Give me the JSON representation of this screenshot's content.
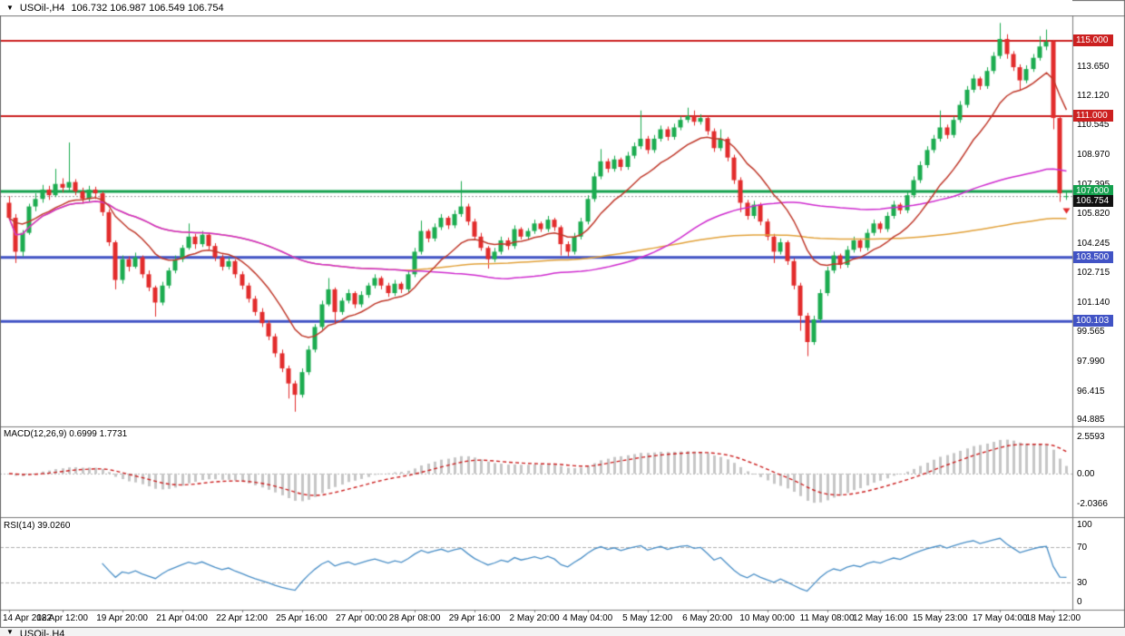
{
  "window": {
    "title_symbol": "USOil-,H4",
    "title_ohlc": "106.732 106.987 106.549 106.754"
  },
  "price_panel": {
    "axis_labels": [
      "113.650",
      "112.120",
      "110.545",
      "108.970",
      "107.395",
      "105.820",
      "104.245",
      "102.715",
      "101.140",
      "99.565",
      "97.990",
      "96.415",
      "94.885"
    ],
    "levels": [
      {
        "price": 115.0,
        "label": "115.000",
        "color": "#cc2020",
        "width": 2
      },
      {
        "price": 111.0,
        "label": "111.000",
        "color": "#cc2020",
        "width": 2
      },
      {
        "price": 107.0,
        "label": "107.000",
        "color": "#13a04d",
        "width": 3
      },
      {
        "price": 103.5,
        "label": "103.500",
        "color": "#4153c5",
        "width": 3
      },
      {
        "price": 100.103,
        "label": "100.103",
        "color": "#4153c5",
        "width": 3
      }
    ],
    "current_price": {
      "value": 106.754,
      "label": "106.754",
      "bg": "#111111"
    },
    "marker": {
      "shape": "down-arrow",
      "index": 159,
      "price": 106.35,
      "color": "#e22c2c"
    }
  },
  "macd_panel": {
    "label": "MACD(12,26,9) 0.6999 1.7731",
    "axis": [
      {
        "value": 2.5593,
        "text": "2.5593"
      },
      {
        "value": 0,
        "text": "0.00"
      },
      {
        "value": -2.0366,
        "text": "-2.0366"
      }
    ]
  },
  "rsi_panel": {
    "label": "RSI(14) 39.0260",
    "axis": [
      {
        "value": 100,
        "text": "100"
      },
      {
        "value": 70,
        "text": "70"
      },
      {
        "value": 30,
        "text": "30"
      },
      {
        "value": 0,
        "text": "0"
      }
    ],
    "levels": [
      70,
      30
    ]
  },
  "bottom_strip": {
    "partial_title": "USOil-,H4"
  },
  "colors": {
    "up_candle": "#1cac50",
    "down_candle": "#e22c2c",
    "ma_fast": "#c0392b",
    "ma_mid": "#cf2bcf",
    "ma_slow": "#e2a23b",
    "macd_histogram": "#c6c6c6",
    "macd_signal": "#cc2020",
    "rsi_line": "#4a8fc7",
    "divider": "#7a7a7a"
  },
  "chart_data": {
    "type": "candlestick",
    "title": "USOil-,H4",
    "last_ohlc": {
      "open": 106.732,
      "high": 106.987,
      "low": 106.549,
      "close": 106.754
    },
    "y_range_visible": [
      94.6,
      116.35
    ],
    "ohlc": [
      [
        106.4,
        106.75,
        105.45,
        105.6
      ],
      [
        105.6,
        105.8,
        103.2,
        103.8
      ],
      [
        103.8,
        104.95,
        103.55,
        104.8
      ],
      [
        104.8,
        106.35,
        104.7,
        106.2
      ],
      [
        106.2,
        106.9,
        105.95,
        106.6
      ],
      [
        106.6,
        107.35,
        106.4,
        107.1
      ],
      [
        107.1,
        107.3,
        106.55,
        106.8
      ],
      [
        106.8,
        108.2,
        106.7,
        107.4
      ],
      [
        107.4,
        107.7,
        106.95,
        107.2
      ],
      [
        107.2,
        109.6,
        107.05,
        107.5
      ],
      [
        107.5,
        107.65,
        106.8,
        107.0
      ],
      [
        107.0,
        107.2,
        106.35,
        106.6
      ],
      [
        106.6,
        107.3,
        106.45,
        107.1
      ],
      [
        107.1,
        107.25,
        106.6,
        106.9
      ],
      [
        106.9,
        107.0,
        105.7,
        105.9
      ],
      [
        105.9,
        106.05,
        104.1,
        104.3
      ],
      [
        104.3,
        104.4,
        101.8,
        102.3
      ],
      [
        102.3,
        103.6,
        102.1,
        103.4
      ],
      [
        103.4,
        103.55,
        102.75,
        103.0
      ],
      [
        103.0,
        103.75,
        102.9,
        103.5
      ],
      [
        103.5,
        103.6,
        102.4,
        102.6
      ],
      [
        102.6,
        102.8,
        101.7,
        101.9
      ],
      [
        101.9,
        102.0,
        100.35,
        101.1
      ],
      [
        101.1,
        102.2,
        100.95,
        102.0
      ],
      [
        102.0,
        102.95,
        101.85,
        102.8
      ],
      [
        102.8,
        103.6,
        102.65,
        103.4
      ],
      [
        103.4,
        104.15,
        103.25,
        104.0
      ],
      [
        104.0,
        105.3,
        103.9,
        104.6
      ],
      [
        104.6,
        104.75,
        103.95,
        104.2
      ],
      [
        104.2,
        104.9,
        104.05,
        104.7
      ],
      [
        104.7,
        104.8,
        103.9,
        104.1
      ],
      [
        104.1,
        104.25,
        103.3,
        103.5
      ],
      [
        103.5,
        103.65,
        102.8,
        103.0
      ],
      [
        103.0,
        103.5,
        102.85,
        103.3
      ],
      [
        103.3,
        103.4,
        102.4,
        102.6
      ],
      [
        102.6,
        102.75,
        101.8,
        102.0
      ],
      [
        102.0,
        102.15,
        101.1,
        101.3
      ],
      [
        101.3,
        101.45,
        100.4,
        100.6
      ],
      [
        100.6,
        100.8,
        99.8,
        100.0
      ],
      [
        100.0,
        100.15,
        99.1,
        99.3
      ],
      [
        99.3,
        99.45,
        98.2,
        98.4
      ],
      [
        98.4,
        98.6,
        97.4,
        97.6
      ],
      [
        97.6,
        97.75,
        96.0,
        96.8
      ],
      [
        96.8,
        96.95,
        95.3,
        96.2
      ],
      [
        96.2,
        97.6,
        96.05,
        97.4
      ],
      [
        97.4,
        98.8,
        97.25,
        98.6
      ],
      [
        98.6,
        99.95,
        98.45,
        99.8
      ],
      [
        99.8,
        101.2,
        99.65,
        101.0
      ],
      [
        101.0,
        102.4,
        100.9,
        101.8
      ],
      [
        101.8,
        101.9,
        99.95,
        100.6
      ],
      [
        100.6,
        101.35,
        100.45,
        101.2
      ],
      [
        101.2,
        101.8,
        101.05,
        101.6
      ],
      [
        101.6,
        101.7,
        100.8,
        101.0
      ],
      [
        101.0,
        101.7,
        100.85,
        101.5
      ],
      [
        101.5,
        102.15,
        101.35,
        102.0
      ],
      [
        102.0,
        102.6,
        101.85,
        102.4
      ],
      [
        102.4,
        102.5,
        101.8,
        102.0
      ],
      [
        102.0,
        102.15,
        101.4,
        101.6
      ],
      [
        101.6,
        102.3,
        101.45,
        102.1
      ],
      [
        102.1,
        102.2,
        101.6,
        101.8
      ],
      [
        101.8,
        102.8,
        101.65,
        102.6
      ],
      [
        102.6,
        104.0,
        102.45,
        103.8
      ],
      [
        103.8,
        105.45,
        103.65,
        104.9
      ],
      [
        104.9,
        105.0,
        104.3,
        104.5
      ],
      [
        104.5,
        105.3,
        104.35,
        105.1
      ],
      [
        105.1,
        105.8,
        104.95,
        105.6
      ],
      [
        105.6,
        105.7,
        105.0,
        105.2
      ],
      [
        105.2,
        106.0,
        105.05,
        105.8
      ],
      [
        105.8,
        107.55,
        105.65,
        106.2
      ],
      [
        106.2,
        106.35,
        105.2,
        105.4
      ],
      [
        105.4,
        105.55,
        104.4,
        104.6
      ],
      [
        104.6,
        104.8,
        103.85,
        104.0
      ],
      [
        104.0,
        104.1,
        102.9,
        103.4
      ],
      [
        103.4,
        104.0,
        103.25,
        103.8
      ],
      [
        103.8,
        104.6,
        103.65,
        104.4
      ],
      [
        104.4,
        104.55,
        103.9,
        104.1
      ],
      [
        104.1,
        105.2,
        103.95,
        105.0
      ],
      [
        105.0,
        105.1,
        104.45,
        104.6
      ],
      [
        104.6,
        105.05,
        104.45,
        104.9
      ],
      [
        104.9,
        105.5,
        104.75,
        105.3
      ],
      [
        105.3,
        105.4,
        104.85,
        105.0
      ],
      [
        105.0,
        105.7,
        104.85,
        105.5
      ],
      [
        105.5,
        105.6,
        104.9,
        105.1
      ],
      [
        105.1,
        105.2,
        103.6,
        104.2
      ],
      [
        104.2,
        104.35,
        103.55,
        103.8
      ],
      [
        103.8,
        104.8,
        103.65,
        104.6
      ],
      [
        104.6,
        105.6,
        104.45,
        105.4
      ],
      [
        105.4,
        106.8,
        105.25,
        106.6
      ],
      [
        106.6,
        108.0,
        106.45,
        107.8
      ],
      [
        107.8,
        109.25,
        107.65,
        108.6
      ],
      [
        108.6,
        108.75,
        108.0,
        108.2
      ],
      [
        108.2,
        108.9,
        108.05,
        108.7
      ],
      [
        108.7,
        108.8,
        108.1,
        108.3
      ],
      [
        108.3,
        109.1,
        108.15,
        108.9
      ],
      [
        108.9,
        109.6,
        108.75,
        109.4
      ],
      [
        109.4,
        111.3,
        109.25,
        109.8
      ],
      [
        109.8,
        109.95,
        109.0,
        109.2
      ],
      [
        109.2,
        110.0,
        109.05,
        109.8
      ],
      [
        109.8,
        110.5,
        109.65,
        110.3
      ],
      [
        110.3,
        110.45,
        109.7,
        109.9
      ],
      [
        109.9,
        110.6,
        109.75,
        110.4
      ],
      [
        110.4,
        111.0,
        110.25,
        110.8
      ],
      [
        110.8,
        111.45,
        110.65,
        111.0
      ],
      [
        111.0,
        111.3,
        110.5,
        110.7
      ],
      [
        110.7,
        111.1,
        110.55,
        110.9
      ],
      [
        110.9,
        111.0,
        110.0,
        110.2
      ],
      [
        110.2,
        110.35,
        109.1,
        109.3
      ],
      [
        109.3,
        110.3,
        109.15,
        109.8
      ],
      [
        109.8,
        109.9,
        108.6,
        108.8
      ],
      [
        108.8,
        108.95,
        107.4,
        107.6
      ],
      [
        107.6,
        107.75,
        105.9,
        106.4
      ],
      [
        106.4,
        106.55,
        105.5,
        105.7
      ],
      [
        105.7,
        106.5,
        105.55,
        106.3
      ],
      [
        106.3,
        106.4,
        105.2,
        105.4
      ],
      [
        105.4,
        105.55,
        104.4,
        104.6
      ],
      [
        104.6,
        104.75,
        103.2,
        103.8
      ],
      [
        103.8,
        104.5,
        103.65,
        104.3
      ],
      [
        104.3,
        104.4,
        103.1,
        103.3
      ],
      [
        103.3,
        103.45,
        101.8,
        102.0
      ],
      [
        102.0,
        102.15,
        99.6,
        100.4
      ],
      [
        100.4,
        100.55,
        98.25,
        99.0
      ],
      [
        99.0,
        100.4,
        98.85,
        100.2
      ],
      [
        100.2,
        101.8,
        100.05,
        101.6
      ],
      [
        101.6,
        103.0,
        101.45,
        102.8
      ],
      [
        102.8,
        103.8,
        102.65,
        103.6
      ],
      [
        103.6,
        103.7,
        102.9,
        103.1
      ],
      [
        103.1,
        104.1,
        102.95,
        103.9
      ],
      [
        103.9,
        104.6,
        103.75,
        104.4
      ],
      [
        104.4,
        104.5,
        103.8,
        104.0
      ],
      [
        104.0,
        105.0,
        103.85,
        104.8
      ],
      [
        104.8,
        105.5,
        104.65,
        105.3
      ],
      [
        105.3,
        105.4,
        104.8,
        105.0
      ],
      [
        105.0,
        105.9,
        104.85,
        105.7
      ],
      [
        105.7,
        106.5,
        105.55,
        106.3
      ],
      [
        106.3,
        106.4,
        105.8,
        106.0
      ],
      [
        106.0,
        107.0,
        105.85,
        106.8
      ],
      [
        106.8,
        107.8,
        106.65,
        107.6
      ],
      [
        107.6,
        108.6,
        107.45,
        108.4
      ],
      [
        108.4,
        109.4,
        108.25,
        109.2
      ],
      [
        109.2,
        110.0,
        109.05,
        109.8
      ],
      [
        109.8,
        111.3,
        109.65,
        110.4
      ],
      [
        110.4,
        110.55,
        109.8,
        110.0
      ],
      [
        110.0,
        111.0,
        109.85,
        110.8
      ],
      [
        110.8,
        111.8,
        110.65,
        111.6
      ],
      [
        111.6,
        112.6,
        111.45,
        112.4
      ],
      [
        112.4,
        113.2,
        112.25,
        113.0
      ],
      [
        113.0,
        113.1,
        112.4,
        112.6
      ],
      [
        112.6,
        113.6,
        112.45,
        113.4
      ],
      [
        113.4,
        114.4,
        113.25,
        114.2
      ],
      [
        114.2,
        115.95,
        114.05,
        115.1
      ],
      [
        115.1,
        115.35,
        114.05,
        114.3
      ],
      [
        114.3,
        114.45,
        113.4,
        113.6
      ],
      [
        113.6,
        113.75,
        112.35,
        112.9
      ],
      [
        112.9,
        113.7,
        112.75,
        113.5
      ],
      [
        113.5,
        114.3,
        113.35,
        114.1
      ],
      [
        114.1,
        115.25,
        113.95,
        114.7
      ],
      [
        114.7,
        115.6,
        114.5,
        114.95
      ],
      [
        114.95,
        115.05,
        110.3,
        110.9
      ],
      [
        110.9,
        111.05,
        106.45,
        106.9
      ],
      [
        106.73,
        106.99,
        106.55,
        106.75
      ]
    ],
    "time_labels": [
      {
        "text": "14 Apr 2022",
        "index": 0
      },
      {
        "text": "18 Apr 12:00",
        "index": 8
      },
      {
        "text": "19 Apr 20:00",
        "index": 17
      },
      {
        "text": "21 Apr 04:00",
        "index": 26
      },
      {
        "text": "22 Apr 12:00",
        "index": 35
      },
      {
        "text": "25 Apr 16:00",
        "index": 44
      },
      {
        "text": "27 Apr 00:00",
        "index": 53
      },
      {
        "text": "28 Apr 08:00",
        "index": 61
      },
      {
        "text": "29 Apr 16:00",
        "index": 70
      },
      {
        "text": "2 May 20:00",
        "index": 79
      },
      {
        "text": "4 May 04:00",
        "index": 87
      },
      {
        "text": "5 May 12:00",
        "index": 96
      },
      {
        "text": "6 May 20:00",
        "index": 105
      },
      {
        "text": "10 May 00:00",
        "index": 114
      },
      {
        "text": "11 May 08:00",
        "index": 123
      },
      {
        "text": "12 May 16:00",
        "index": 131
      },
      {
        "text": "15 May 23:00",
        "index": 140
      },
      {
        "text": "17 May 04:00",
        "index": 149
      },
      {
        "text": "18 May 12:00",
        "index": 157
      }
    ],
    "indicators": {
      "overlays": [
        {
          "name": "ma-fast",
          "method": "ema",
          "period": 13,
          "color": "#c0392b"
        },
        {
          "name": "ma-mid",
          "method": "sma",
          "period": 60,
          "color": "#cf2bcf"
        },
        {
          "name": "ma-slow",
          "method": "sma",
          "period": 150,
          "color": "#e2a23b"
        }
      ],
      "macd": {
        "fast": 12,
        "slow": 26,
        "signal": 9,
        "display": "MACD(12,26,9) 0.6999 1.7731"
      },
      "rsi": {
        "period": 14,
        "last_value": 39.026,
        "display": "RSI(14) 39.0260",
        "guide_levels": [
          70,
          30
        ]
      }
    }
  }
}
